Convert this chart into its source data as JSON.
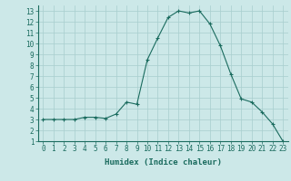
{
  "x": [
    0,
    1,
    2,
    3,
    4,
    5,
    6,
    7,
    8,
    9,
    10,
    11,
    12,
    13,
    14,
    15,
    16,
    17,
    18,
    19,
    20,
    21,
    22,
    23
  ],
  "y": [
    3,
    3,
    3,
    3,
    3.2,
    3.2,
    3.1,
    3.5,
    4.6,
    4.4,
    8.5,
    10.5,
    12.4,
    13.0,
    12.8,
    13.0,
    11.8,
    9.8,
    7.2,
    4.9,
    4.6,
    3.7,
    2.6,
    1.0
  ],
  "line_color": "#1a6b5e",
  "marker": "+",
  "marker_color": "#1a6b5e",
  "bg_color": "#cce8e8",
  "grid_color": "#a8cece",
  "xlabel": "Humidex (Indice chaleur)",
  "xlabel_fontsize": 6.5,
  "tick_fontsize": 5.5,
  "xlim": [
    -0.5,
    23.5
  ],
  "ylim": [
    1,
    13.5
  ],
  "yticks": [
    1,
    2,
    3,
    4,
    5,
    6,
    7,
    8,
    9,
    10,
    11,
    12,
    13
  ],
  "xticks": [
    0,
    1,
    2,
    3,
    4,
    5,
    6,
    7,
    8,
    9,
    10,
    11,
    12,
    13,
    14,
    15,
    16,
    17,
    18,
    19,
    20,
    21,
    22,
    23
  ]
}
